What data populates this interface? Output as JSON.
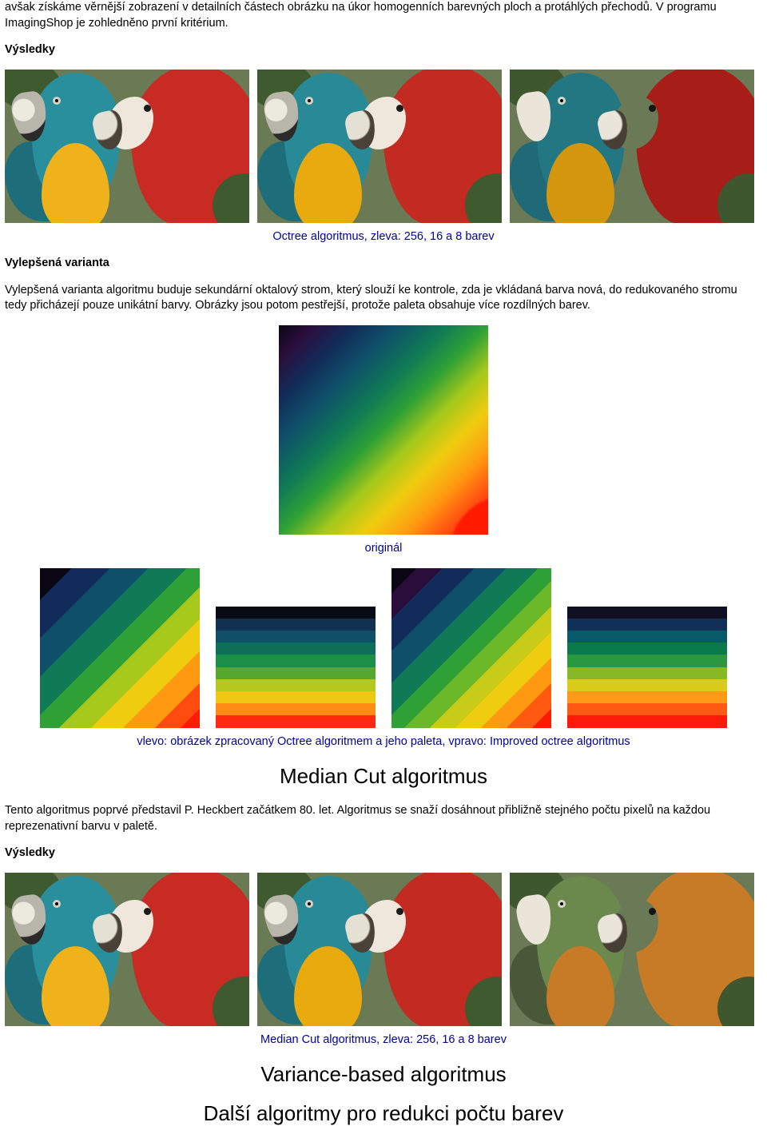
{
  "intro_para": "avšak získáme věrnější zobrazení v detailních částech obrázku na úkor homogenních barevných ploch a protáhlých přechodů. V programu ImagingShop je zohledněno první kritérium.",
  "results_heading": "Výsledky",
  "octree_caption": "Octree algoritmus, zleva: 256, 16 a 8 barev",
  "improved_heading": "Vylepšená varianta",
  "improved_para": "Vylepšená varianta algoritmu buduje sekundární oktalový strom, který slouží ke kontrole, zda je vkládaná barva nová, do redukovaného stromu tedy přicházejí pouze unikátní barvy. Obrázky jsou potom pestřejší, protože paleta obsahuje více rozdílných barev.",
  "original_caption": "originál",
  "compare_caption": "vlevo: obrázek zpracovaný Octree algoritmem a jeho paleta, vpravo: Improved octree algoritmus",
  "median_cut_heading": "Median Cut algoritmus",
  "median_cut_para": "Tento algoritmus poprvé představil P. Heckbert začátkem 80. let. Algoritmus se snaží dosáhnout přibližně stejného počtu pixelů na každou reprezenativní barvu v paletě.",
  "results_heading_2": "Výsledky",
  "median_caption": "Median Cut algoritmus, zleva: 256, 16 a 8 barev",
  "variance_heading": "Variance-based algoritmus",
  "other_heading": "Další algoritmy pro redukci počtu barev"
}
